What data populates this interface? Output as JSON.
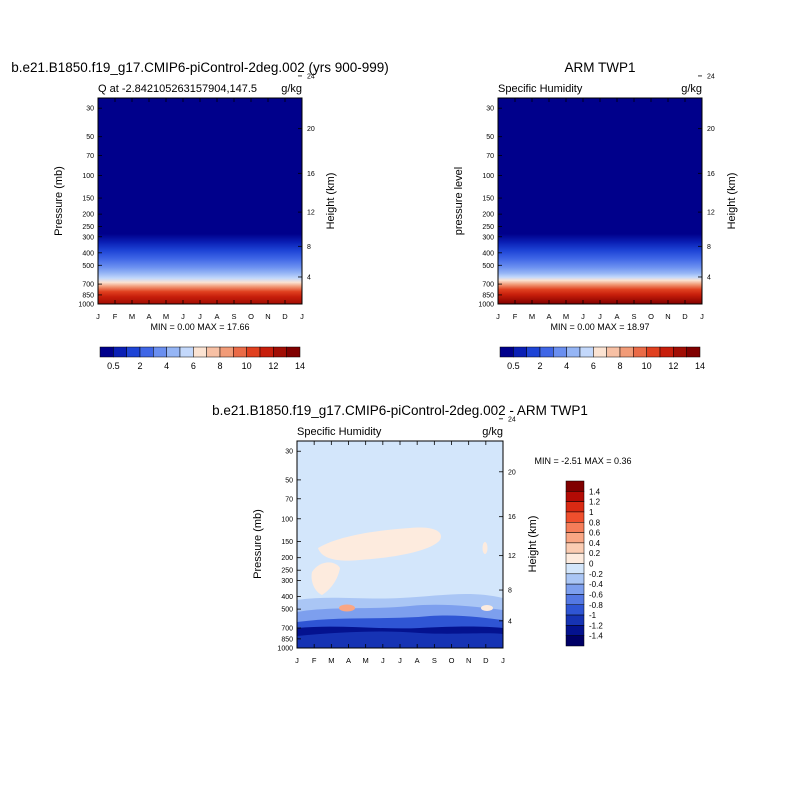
{
  "figure": {
    "months": [
      "J",
      "F",
      "M",
      "A",
      "M",
      "J",
      "J",
      "A",
      "S",
      "O",
      "N",
      "D",
      "J"
    ],
    "pressure_ticks": [
      "30",
      "50",
      "70",
      "100",
      "150",
      "200",
      "250",
      "300",
      "400",
      "500",
      "700",
      "850",
      "1000"
    ],
    "height_ticks": [
      "24",
      "20",
      "16",
      "12",
      "8",
      "4"
    ]
  },
  "colorbar": {
    "labels": [
      "0.5",
      "2",
      "4",
      "6",
      "8",
      "10",
      "12",
      "14"
    ],
    "colors": [
      "#00008b",
      "#0a1fb5",
      "#1e44d6",
      "#3f66e6",
      "#6a8ff0",
      "#95b5f5",
      "#c3d8fb",
      "#fbe3d2",
      "#f7c0a4",
      "#f19b77",
      "#ea6b47",
      "#e0401f",
      "#c71e0b",
      "#a10d04",
      "#800000"
    ]
  },
  "diff_colorbar": {
    "labels": [
      "1.4",
      "1.2",
      "1",
      "0.8",
      "0.6",
      "0.4",
      "0.2",
      "0",
      "-0.2",
      "-0.4",
      "-0.6",
      "-0.8",
      "-1",
      "-1.2",
      "-1.4"
    ],
    "colors": [
      "#800000",
      "#b30b05",
      "#d92a13",
      "#ef4f2d",
      "#f57d59",
      "#f9a684",
      "#fbccb2",
      "#fdebde",
      "#d3e6fb",
      "#aac6f5",
      "#7d9fee",
      "#5478e3",
      "#2f55d4",
      "#1633b4",
      "#04128f",
      "#000066"
    ]
  },
  "chart_data": [
    {
      "type": "heatmap",
      "title": "b.e21.B1850.f19_g17.CMIP6-piControl-2deg.002 (yrs 900-999)",
      "subtitle_left": "Q at -2.842105263157904,147.5",
      "units": "g/kg",
      "ylabel": "Pressure (mb)",
      "ylabel_right": "Height (km)",
      "x": [
        "J",
        "F",
        "M",
        "A",
        "M",
        "J",
        "J",
        "A",
        "S",
        "O",
        "N",
        "D",
        "J"
      ],
      "y_log_scale": true,
      "ylim": [
        1000,
        25
      ],
      "min_max_text": "MIN =   0.00 MAX =  17.66",
      "min": 0.0,
      "max": 17.66,
      "contour_levels": [
        0.5,
        1,
        2,
        3,
        4,
        5,
        6,
        7,
        8,
        9,
        10,
        11,
        12,
        13,
        14
      ]
    },
    {
      "type": "heatmap",
      "title": "ARM TWP1",
      "subtitle_left": "Specific Humidity",
      "units": "g/kg",
      "ylabel": "pressure level",
      "ylabel_right": "Height (km)",
      "x": [
        "J",
        "F",
        "M",
        "A",
        "M",
        "J",
        "J",
        "A",
        "S",
        "O",
        "N",
        "D",
        "J"
      ],
      "y_log_scale": true,
      "ylim": [
        1000,
        25
      ],
      "min_max_text": "MIN =   0.00 MAX =  18.97",
      "min": 0.0,
      "max": 18.97,
      "contour_levels": [
        0.5,
        1,
        2,
        3,
        4,
        5,
        6,
        7,
        8,
        9,
        10,
        11,
        12,
        13,
        14
      ]
    },
    {
      "type": "heatmap",
      "title": "b.e21.B1850.f19_g17.CMIP6-piControl-2deg.002 - ARM TWP1",
      "subtitle_left": "Specific Humidity",
      "units": "g/kg",
      "ylabel": "Pressure (mb)",
      "ylabel_right": "Height (km)",
      "x": [
        "J",
        "F",
        "M",
        "A",
        "M",
        "J",
        "J",
        "A",
        "S",
        "O",
        "N",
        "D",
        "J"
      ],
      "y_log_scale": true,
      "ylim": [
        1000,
        25
      ],
      "min_max_text": "MIN =  -2.51 MAX =   0.36",
      "min": -2.51,
      "max": 0.36,
      "contour_levels": [
        -1.4,
        -1.2,
        -1,
        -0.8,
        -0.6,
        -0.4,
        -0.2,
        0,
        0.2,
        0.4,
        0.6,
        0.8,
        1,
        1.2,
        1.4
      ]
    }
  ]
}
